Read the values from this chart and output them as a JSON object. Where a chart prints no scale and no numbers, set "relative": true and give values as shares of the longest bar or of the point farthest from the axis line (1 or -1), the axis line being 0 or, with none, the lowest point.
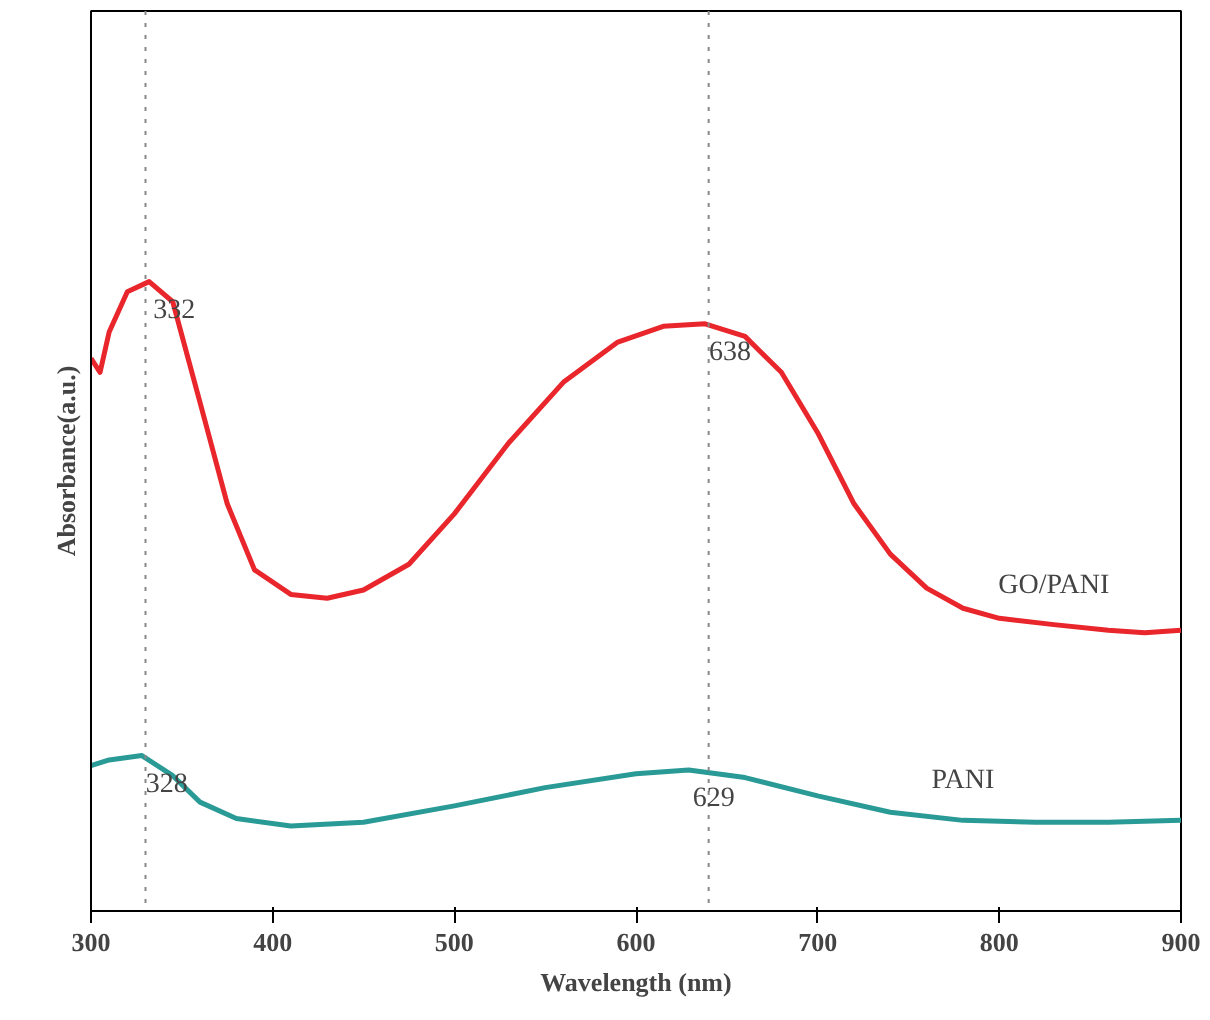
{
  "chart_data": {
    "type": "line",
    "relative": true,
    "xlabel": "Wavelength (nm)",
    "ylabel": "Absorbance(a.u.)",
    "xlim": [
      300,
      900
    ],
    "xticks": [
      300,
      400,
      500,
      600,
      700,
      800,
      900
    ],
    "grid": false,
    "legend": false,
    "marker": "none",
    "line_style": "solid",
    "series": [
      {
        "name": "GO/PANI",
        "color": "#e8262b",
        "x": [
          300,
          305,
          310,
          320,
          332,
          345,
          360,
          375,
          390,
          410,
          430,
          450,
          475,
          500,
          530,
          560,
          590,
          615,
          638,
          660,
          680,
          700,
          720,
          740,
          760,
          780,
          800,
          830,
          860,
          880,
          900
        ],
        "values": [
          0.878,
          0.856,
          0.92,
          0.984,
          1.0,
          0.968,
          0.808,
          0.647,
          0.542,
          0.503,
          0.497,
          0.51,
          0.551,
          0.631,
          0.744,
          0.84,
          0.904,
          0.929,
          0.933,
          0.913,
          0.856,
          0.76,
          0.647,
          0.567,
          0.513,
          0.481,
          0.465,
          0.455,
          0.446,
          0.442,
          0.446
        ]
      },
      {
        "name": "PANI",
        "color": "#2a9a96",
        "x": [
          300,
          310,
          328,
          345,
          360,
          380,
          410,
          450,
          500,
          550,
          600,
          629,
          660,
          700,
          740,
          780,
          820,
          860,
          900
        ],
        "values": [
          0.231,
          0.24,
          0.247,
          0.215,
          0.173,
          0.147,
          0.135,
          0.141,
          0.167,
          0.196,
          0.218,
          0.224,
          0.212,
          0.183,
          0.157,
          0.144,
          0.141,
          0.141,
          0.144
        ]
      }
    ],
    "ref_lines": [
      {
        "axis": "x",
        "value": 330,
        "color": "#888888",
        "line_style": "dotted"
      },
      {
        "axis": "x",
        "value": 640,
        "color": "#888888",
        "line_style": "dotted"
      }
    ],
    "annotations": [
      {
        "text": "332",
        "x": 332,
        "y": 1.0
      },
      {
        "text": "638",
        "x": 638,
        "y": 0.933
      },
      {
        "text": "328",
        "x": 328,
        "y": 0.247
      },
      {
        "text": "629",
        "x": 629,
        "y": 0.224
      }
    ]
  }
}
